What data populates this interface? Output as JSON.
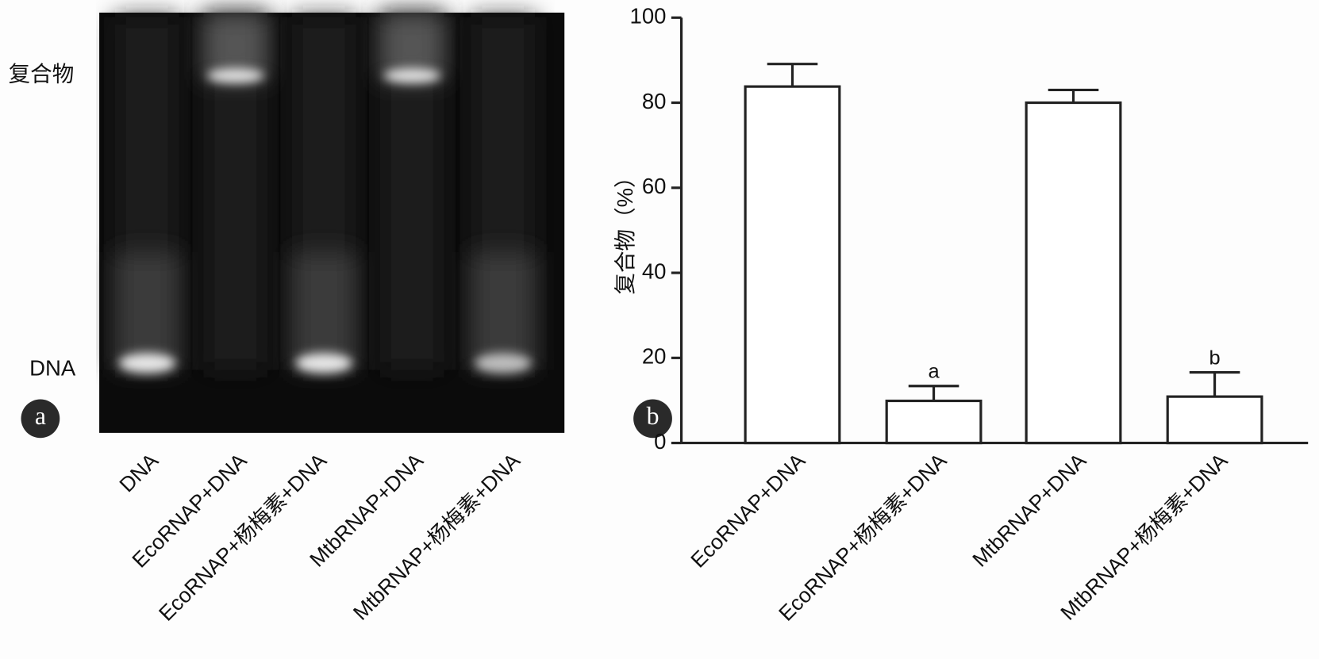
{
  "panel_labels": [
    "a",
    "b"
  ],
  "gel": {
    "band_labels": [
      "复合物",
      "DNA"
    ],
    "lanes": [
      "DNA",
      "EcoRNAP+DNA",
      "EcoRNAP+杨梅素+DNA",
      "MtbRNAP+DNA",
      "MtbRNAP+杨梅素+DNA"
    ]
  },
  "chart_data": {
    "type": "bar",
    "y_label": "复合物（%）",
    "categories": [
      "EcoRNAP+DNA",
      "EcoRNAP+杨梅素+DNA",
      "MtbRNAP+DNA",
      "MtbRNAP+杨梅素+DNA"
    ],
    "values": [
      83.8,
      9.9,
      80.0,
      10.9
    ],
    "errors": [
      5.3,
      3.5,
      3.0,
      5.7
    ],
    "annotations": [
      null,
      "a",
      null,
      "b"
    ],
    "color": "#ffffff",
    "ylim": [
      0,
      100
    ],
    "yticks": [
      0,
      20,
      40,
      60,
      80,
      100
    ]
  }
}
